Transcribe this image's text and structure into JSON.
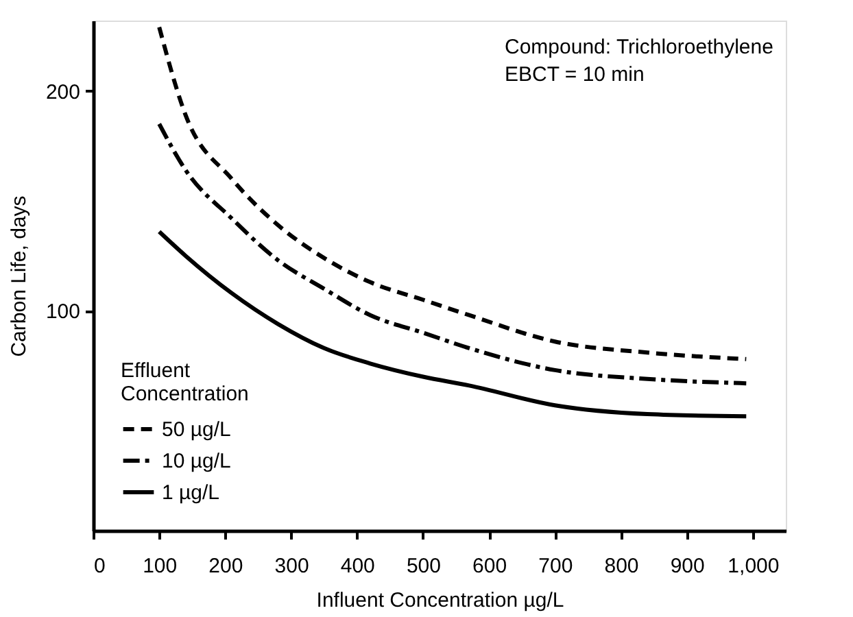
{
  "chart_data": {
    "type": "line",
    "xlabel": "Influent Concentration µg/L",
    "ylabel": "Carbon Life, days",
    "legend_title": "Effluent Concentration",
    "legend": "bottom left",
    "grid": false,
    "marker": "none",
    "annotations": [
      "Compound: Trichloroethylene",
      "EBCT = 10 min"
    ],
    "x": [
      100,
      140,
      210,
      280,
      350,
      420,
      500,
      570,
      700,
      840,
      990
    ],
    "xlim": [
      0,
      1050
    ],
    "xticks": [
      0,
      100,
      200,
      300,
      400,
      500,
      600,
      700,
      800,
      900,
      {
        "value": 1000,
        "label": "1,000"
      }
    ],
    "ylim": [
      0,
      232
    ],
    "yticks": [
      100,
      200
    ],
    "series": [
      {
        "name": "50 µg/L",
        "color": "#000000",
        "line_style": "dashed",
        "values": [
          229,
          189,
          160,
          139,
          124,
          113,
          105,
          98,
          86,
          81,
          78
        ]
      },
      {
        "name": "10 µg/L",
        "color": "#000000",
        "line_style": "dashdot",
        "values": [
          185,
          164,
          142,
          123,
          110,
          98,
          90,
          83,
          73,
          69,
          67
        ]
      },
      {
        "name": "1 µg/L",
        "color": "#000000",
        "line_style": "solid",
        "values": [
          136,
          125,
          108,
          94,
          83,
          76,
          70,
          66,
          57,
          53,
          52
        ]
      }
    ]
  }
}
